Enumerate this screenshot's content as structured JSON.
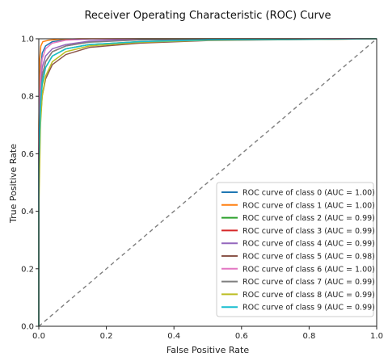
{
  "chart_data": {
    "type": "line",
    "title": "Receiver Operating Characteristic (ROC) Curve",
    "xlabel": "False Positive Rate",
    "ylabel": "True Positive Rate",
    "xlim": [
      0.0,
      1.0
    ],
    "ylim": [
      0.0,
      1.0
    ],
    "x_ticks": [
      "0.0",
      "0.2",
      "0.4",
      "0.6",
      "0.8",
      "1.0"
    ],
    "y_ticks": [
      "0.0",
      "0.2",
      "0.4",
      "0.6",
      "0.8",
      "1.0"
    ],
    "grid": false,
    "legend_position": "lower-right",
    "baseline": {
      "x": [
        0.0,
        1.0
      ],
      "y": [
        0.0,
        1.0
      ],
      "style": "dashed",
      "color": "#7f7f7f"
    },
    "series": [
      {
        "name": "ROC curve of class 0 (AUC = 1.00)",
        "color": "#1f77b4",
        "x": [
          0.0,
          0.0,
          0.005,
          0.01,
          0.02,
          0.04,
          0.08,
          0.15,
          0.3,
          1.0
        ],
        "y": [
          0.0,
          0.6,
          0.88,
          0.95,
          0.975,
          0.99,
          0.996,
          0.999,
          1.0,
          1.0
        ]
      },
      {
        "name": "ROC curve of class 1 (AUC = 1.00)",
        "color": "#ff7f0e",
        "x": [
          0.0,
          0.0,
          0.003,
          0.006,
          0.012,
          0.03,
          0.06,
          0.12,
          1.0
        ],
        "y": [
          0.0,
          0.7,
          0.93,
          0.975,
          0.99,
          0.995,
          0.998,
          1.0,
          1.0
        ]
      },
      {
        "name": "ROC curve of class 2 (AUC = 0.99)",
        "color": "#2ca02c",
        "x": [
          0.0,
          0.0,
          0.005,
          0.01,
          0.02,
          0.04,
          0.08,
          0.15,
          0.3,
          0.5,
          1.0
        ],
        "y": [
          0.0,
          0.55,
          0.75,
          0.84,
          0.9,
          0.94,
          0.965,
          0.98,
          0.99,
          0.996,
          1.0
        ]
      },
      {
        "name": "ROC curve of class 3 (AUC = 0.99)",
        "color": "#d62728",
        "x": [
          0.0,
          0.0,
          0.005,
          0.01,
          0.02,
          0.04,
          0.08,
          0.15,
          0.3,
          1.0
        ],
        "y": [
          0.0,
          0.6,
          0.8,
          0.87,
          0.92,
          0.955,
          0.975,
          0.99,
          0.997,
          1.0
        ]
      },
      {
        "name": "ROC curve of class 4 (AUC = 0.99)",
        "color": "#9467bd",
        "x": [
          0.0,
          0.0,
          0.005,
          0.01,
          0.02,
          0.04,
          0.08,
          0.15,
          0.3,
          1.0
        ],
        "y": [
          0.0,
          0.62,
          0.82,
          0.9,
          0.94,
          0.965,
          0.98,
          0.992,
          0.998,
          1.0
        ]
      },
      {
        "name": "ROC curve of class 5 (AUC = 0.98)",
        "color": "#8c564b",
        "x": [
          0.0,
          0.0,
          0.005,
          0.01,
          0.02,
          0.04,
          0.08,
          0.15,
          0.3,
          0.5,
          1.0
        ],
        "y": [
          0.0,
          0.5,
          0.72,
          0.8,
          0.86,
          0.91,
          0.945,
          0.97,
          0.985,
          0.994,
          1.0
        ]
      },
      {
        "name": "ROC curve of class 6 (AUC = 1.00)",
        "color": "#e377c2",
        "x": [
          0.0,
          0.0,
          0.005,
          0.01,
          0.02,
          0.04,
          0.08,
          0.15,
          1.0
        ],
        "y": [
          0.0,
          0.68,
          0.87,
          0.93,
          0.965,
          0.985,
          0.995,
          0.999,
          1.0
        ]
      },
      {
        "name": "ROC curve of class 7 (AUC = 0.99)",
        "color": "#7f7f7f",
        "x": [
          0.0,
          0.0,
          0.005,
          0.01,
          0.02,
          0.04,
          0.08,
          0.15,
          0.3,
          1.0
        ],
        "y": [
          0.0,
          0.58,
          0.79,
          0.87,
          0.92,
          0.955,
          0.975,
          0.988,
          0.996,
          1.0
        ]
      },
      {
        "name": "ROC curve of class 8 (AUC = 0.99)",
        "color": "#bcbd22",
        "x": [
          0.0,
          0.0,
          0.005,
          0.01,
          0.02,
          0.04,
          0.08,
          0.15,
          0.3,
          0.5,
          1.0
        ],
        "y": [
          0.0,
          0.4,
          0.7,
          0.8,
          0.87,
          0.92,
          0.955,
          0.975,
          0.988,
          0.995,
          1.0
        ]
      },
      {
        "name": "ROC curve of class 9 (AUC = 0.99)",
        "color": "#17becf",
        "x": [
          0.0,
          0.0,
          0.005,
          0.01,
          0.02,
          0.04,
          0.08,
          0.15,
          0.3,
          0.5,
          1.0
        ],
        "y": [
          0.0,
          0.56,
          0.76,
          0.85,
          0.9,
          0.94,
          0.965,
          0.98,
          0.99,
          0.996,
          1.0
        ]
      }
    ]
  }
}
